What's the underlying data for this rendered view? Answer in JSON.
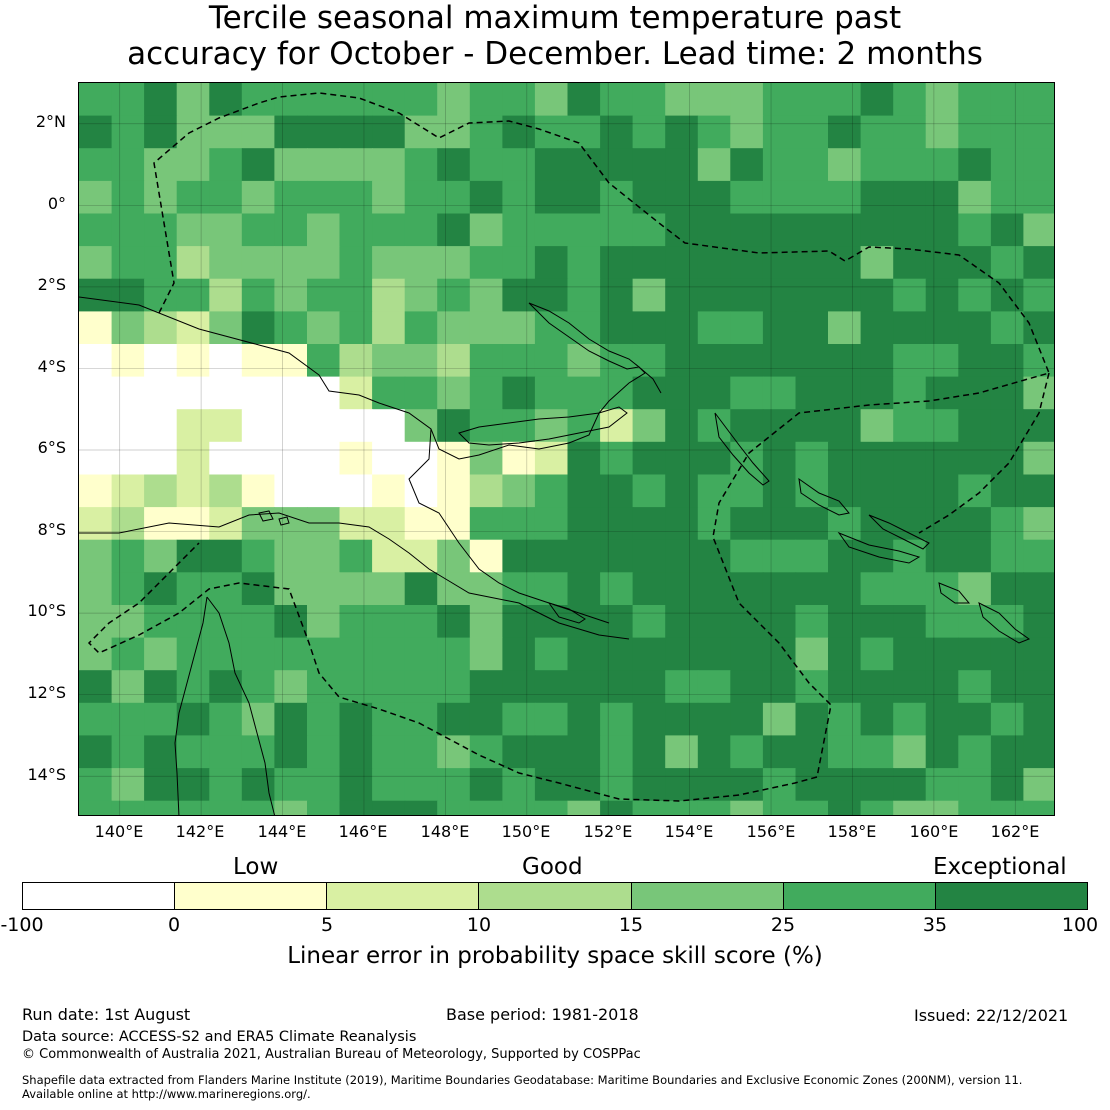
{
  "title": {
    "line1": "Tercile seasonal maximum temperature past",
    "line2": "accuracy for October - December. Lead time: 2 months"
  },
  "map": {
    "lat_labels": [
      "2°N",
      "0°",
      "2°S",
      "4°S",
      "6°S",
      "8°S",
      "10°S",
      "12°S",
      "14°S"
    ],
    "lon_labels": [
      "140°E",
      "142°E",
      "144°E",
      "146°E",
      "148°E",
      "150°E",
      "152°E",
      "154°E",
      "156°E",
      "158°E",
      "160°E",
      "162°E"
    ],
    "lon_range": [
      139.0,
      163.0
    ],
    "lat_range": [
      -15.0,
      3.0
    ],
    "gridlines": true,
    "grid_cell_deg": 0.8
  },
  "colorbar": {
    "categories": [
      "Low",
      "Good",
      "Exceptional"
    ],
    "ticks": [
      "-100",
      "0",
      "5",
      "10",
      "15",
      "25",
      "35",
      "100"
    ],
    "bins": [
      {
        "from": -100,
        "to": 0,
        "color": "#ffffff"
      },
      {
        "from": 0,
        "to": 5,
        "color": "#ffffcc"
      },
      {
        "from": 5,
        "to": 10,
        "color": "#d9f0a3"
      },
      {
        "from": 10,
        "to": 15,
        "color": "#addd8e"
      },
      {
        "from": 15,
        "to": 25,
        "color": "#78c679"
      },
      {
        "from": 25,
        "to": 35,
        "color": "#41ab5d"
      },
      {
        "from": 35,
        "to": 100,
        "color": "#238443"
      }
    ],
    "label": "Linear error in probability space skill score (%)"
  },
  "footer": {
    "run_date": "Run date: 1st August",
    "base_period": "Base period: 1981-2018",
    "issued": "Issued: 22/12/2021",
    "data_source": "Data source: ACCESS-S2 and ERA5 Climate Reanalysis",
    "copyright": "© Commonwealth of Australia 2021, Australian Bureau of Meteorology, Supported by COSPPac",
    "shapefile_line1": "Shapefile data extracted from Flanders Marine Institute (2019), Maritime Boundaries Geodatabase: Maritime Boundaries and Exclusive Economic Zones (200NM), version 11.",
    "shapefile_line2": "Available online at http://www.marineregions.org/."
  }
}
